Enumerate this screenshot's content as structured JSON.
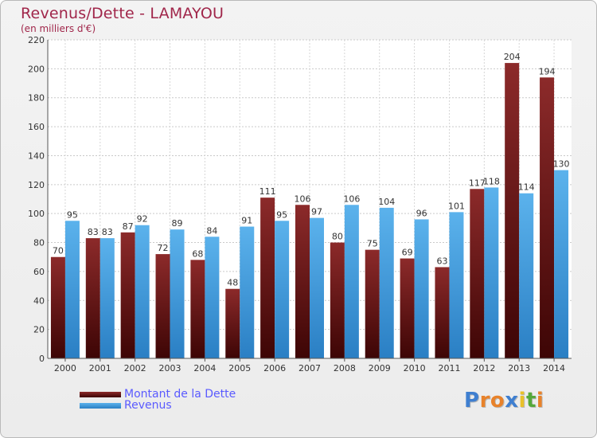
{
  "title": "Revenus/Dette - LAMAYOU",
  "subtitle": "(en milliers d'€)",
  "chart_data": {
    "type": "bar",
    "categories": [
      "2000",
      "2001",
      "2002",
      "2003",
      "2004",
      "2005",
      "2006",
      "2007",
      "2008",
      "2009",
      "2010",
      "2011",
      "2012",
      "2013",
      "2014"
    ],
    "series": [
      {
        "name": "Montant de la Dette",
        "color": "#7a1a1a",
        "values": [
          70,
          83,
          87,
          72,
          68,
          48,
          111,
          106,
          80,
          75,
          69,
          63,
          117,
          204,
          194
        ]
      },
      {
        "name": "Revenus",
        "color": "#4aa3e0",
        "values": [
          95,
          83,
          92,
          89,
          84,
          91,
          95,
          97,
          106,
          104,
          96,
          101,
          118,
          114,
          130
        ]
      }
    ],
    "ylim": [
      0,
      220
    ],
    "yticks": [
      0,
      20,
      40,
      60,
      80,
      100,
      120,
      140,
      160,
      180,
      200,
      220
    ],
    "grid": true,
    "legend_position": "bottom-left"
  },
  "legend": [
    {
      "label": "Montant de la Dette",
      "color": "#7a1a1a"
    },
    {
      "label": "Revenus",
      "color": "#4aa3e0"
    }
  ],
  "logo": {
    "letters": [
      {
        "ch": "P",
        "color": "#3f7fd0"
      },
      {
        "ch": "r",
        "color": "#e8822a"
      },
      {
        "ch": "o",
        "color": "#e8822a"
      },
      {
        "ch": "x",
        "color": "#3f7fd0"
      },
      {
        "ch": "i",
        "color": "#e8c12a"
      },
      {
        "ch": "t",
        "color": "#55a83a"
      },
      {
        "ch": "i",
        "color": "#e8822a"
      }
    ]
  }
}
